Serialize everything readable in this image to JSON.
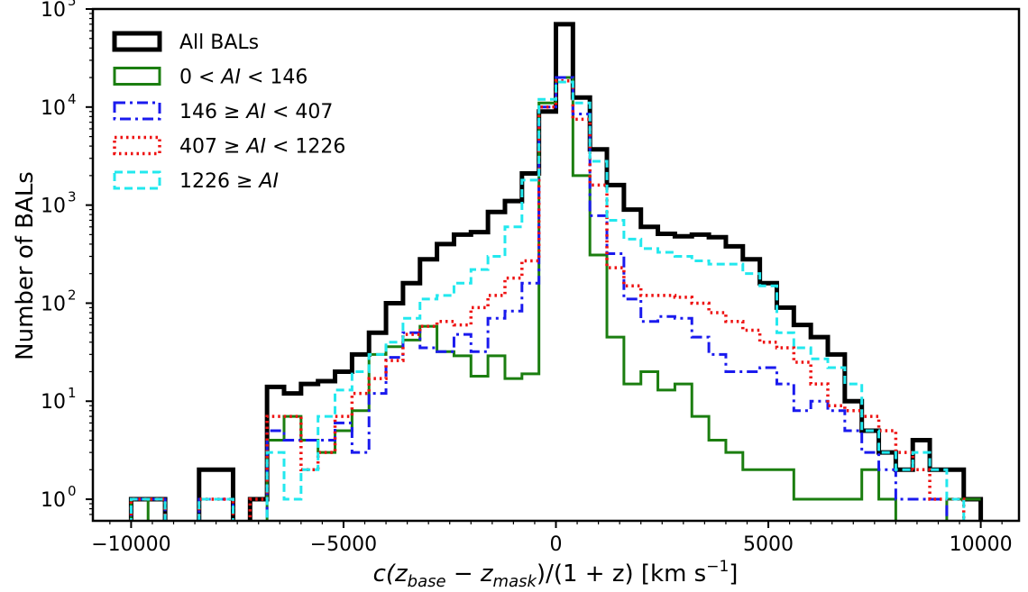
{
  "chart_data": {
    "type": "histogram",
    "xlabel_parts": {
      "c": "c(z",
      "base": "base",
      "minus": " − z",
      "mask": "mask",
      "rest": ")/(1 + z) [km s",
      "sup": "−1",
      "end": "]"
    },
    "ylabel": "Number of BALs",
    "xlim": [
      -10900,
      10900
    ],
    "ylim_log10": [
      -0.22,
      5.0
    ],
    "y_scale": "log",
    "x_ticks": [
      -10000,
      -5000,
      0,
      5000,
      10000
    ],
    "x_tick_labels": [
      "−10000",
      "−5000",
      "0",
      "5000",
      "10000"
    ],
    "y_ticks_log10": [
      0,
      1,
      2,
      3,
      4,
      5
    ],
    "y_tick_base": "10",
    "y_tick_exps": [
      "0",
      "1",
      "2",
      "3",
      "4",
      "5"
    ],
    "grid": false,
    "legend_position": "top-left",
    "bin_edges": [
      -10000,
      -9600,
      -9200,
      -8800,
      -8400,
      -8000,
      -7600,
      -7200,
      -6800,
      -6400,
      -6000,
      -5600,
      -5200,
      -4800,
      -4400,
      -4000,
      -3600,
      -3200,
      -2800,
      -2400,
      -2000,
      -1600,
      -1200,
      -800,
      -400,
      0,
      400,
      800,
      1200,
      1600,
      2000,
      2400,
      2800,
      3200,
      3600,
      4000,
      4400,
      4800,
      5200,
      5600,
      6000,
      6400,
      6800,
      7200,
      7600,
      8000,
      8400,
      8800,
      9200,
      9600,
      10000
    ],
    "series": [
      {
        "name": "All BALs",
        "color": "#000000",
        "dash": "solid",
        "width": 5,
        "counts": [
          1,
          1,
          0,
          0,
          2,
          2,
          0,
          1,
          14,
          12,
          15,
          16,
          20,
          30,
          50,
          100,
          160,
          280,
          400,
          500,
          530,
          850,
          1100,
          2100,
          9000,
          70000,
          12500,
          3700,
          1600,
          900,
          600,
          510,
          480,
          500,
          470,
          380,
          280,
          160,
          90,
          60,
          45,
          30,
          10,
          5,
          3,
          2,
          4,
          2,
          2,
          1,
          0
        ]
      },
      {
        "name": "0 < AI < 146",
        "color": "#1b7e10",
        "dash": "solid",
        "width": 3,
        "counts": [
          1,
          0,
          0,
          0,
          0,
          0,
          0,
          0,
          4,
          7,
          4,
          3,
          5,
          8,
          30,
          36,
          42,
          58,
          32,
          29,
          18,
          29,
          17,
          19,
          11000,
          20000,
          2000,
          310,
          45,
          15,
          20,
          13,
          15,
          7,
          4,
          3,
          2,
          2,
          2,
          1,
          1,
          1,
          1,
          2,
          1,
          0,
          0,
          0,
          1,
          1,
          1
        ]
      },
      {
        "name": "146 ≥ AI < 407",
        "color": "#1a1aee",
        "dash": "dashdot",
        "width": 3,
        "counts": [
          1,
          1,
          0,
          0,
          1,
          1,
          0,
          0,
          5,
          4,
          4,
          4,
          6,
          3,
          12,
          28,
          50,
          35,
          32,
          48,
          32,
          70,
          83,
          160,
          10000,
          20000,
          8500,
          780,
          320,
          110,
          65,
          73,
          70,
          45,
          30,
          20,
          20,
          22,
          15,
          8,
          10,
          8,
          5,
          3,
          2,
          1,
          1,
          1,
          0,
          0,
          0
        ]
      },
      {
        "name": "407 ≥ AI < 1226",
        "color": "#ee1111",
        "dash": "dotted",
        "width": 3.5,
        "counts": [
          1,
          1,
          0,
          0,
          1,
          1,
          0,
          1,
          7,
          7,
          2,
          3,
          7,
          12,
          17,
          26,
          48,
          58,
          65,
          60,
          90,
          120,
          180,
          270,
          10000,
          18500,
          7500,
          1600,
          230,
          150,
          120,
          120,
          115,
          100,
          80,
          65,
          53,
          40,
          35,
          25,
          15,
          9,
          8,
          7,
          5,
          3,
          2,
          1,
          1,
          0,
          0
        ]
      },
      {
        "name": "1226 ≥ AI",
        "color": "#22e8ee",
        "dash": "dashed",
        "width": 3,
        "counts": [
          1,
          1,
          0,
          0,
          1,
          1,
          0,
          0,
          3,
          1,
          2,
          7,
          13,
          20,
          30,
          40,
          70,
          110,
          120,
          160,
          220,
          300,
          600,
          1800,
          12000,
          18000,
          11000,
          2800,
          700,
          450,
          360,
          330,
          300,
          270,
          250,
          250,
          200,
          150,
          50,
          35,
          27,
          22,
          15,
          5,
          3,
          2,
          3,
          2,
          1,
          0,
          0
        ]
      }
    ]
  }
}
